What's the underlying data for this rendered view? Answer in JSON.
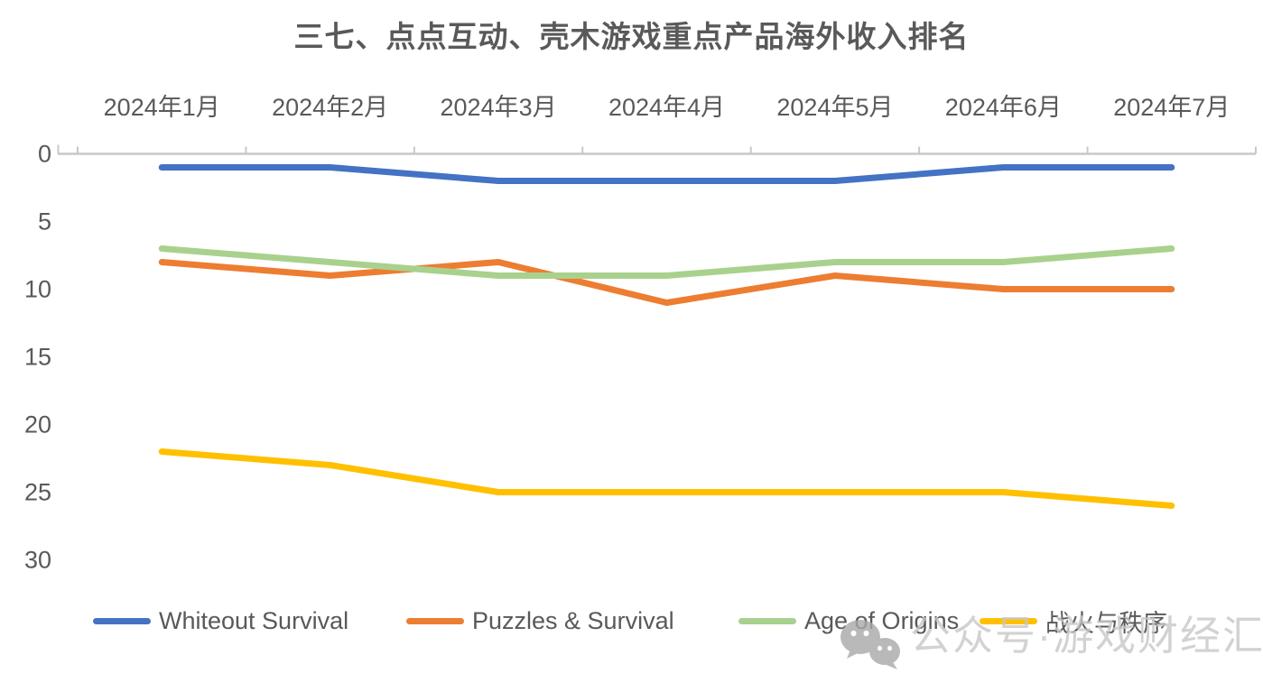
{
  "title": "三七、点点互动、壳木游戏重点产品海外收入排名",
  "chart_data": {
    "type": "line",
    "categories": [
      "2024年1月",
      "2024年2月",
      "2024年3月",
      "2024年4月",
      "2024年5月",
      "2024年6月",
      "2024年7月"
    ],
    "series": [
      {
        "name": "Whiteout Survival",
        "color": "#4472C4",
        "values": [
          1,
          1,
          2,
          2,
          2,
          1,
          1
        ]
      },
      {
        "name": "Puzzles & Survival",
        "color": "#ED7D31",
        "values": [
          8,
          9,
          8,
          11,
          9,
          10,
          10
        ]
      },
      {
        "name": "Age of Origins",
        "color": "#A9D18E",
        "values": [
          7,
          8,
          9,
          9,
          8,
          8,
          7
        ]
      },
      {
        "name": "战火与秩序",
        "color": "#FFC000",
        "values": [
          22,
          23,
          25,
          25,
          25,
          25,
          26
        ]
      }
    ],
    "y_axis": {
      "ticks": [
        0,
        5,
        10,
        15,
        20,
        25,
        30
      ],
      "min": 0,
      "max": 30,
      "inverted": true
    },
    "x_axis": {
      "position": "top"
    },
    "legend_position": "bottom",
    "grid": false,
    "ylabel": "",
    "xlabel": ""
  },
  "watermark": {
    "text": "公众号·游戏财经汇",
    "icon": "wechat-icon"
  },
  "colors": {
    "axis_line": "#C8C8C8",
    "axis_text": "#595959",
    "legend_text": "#595959",
    "watermark_text": "#C7C7C7",
    "watermark_icon": "#A8A8A8",
    "background": "#FFFFFF"
  }
}
